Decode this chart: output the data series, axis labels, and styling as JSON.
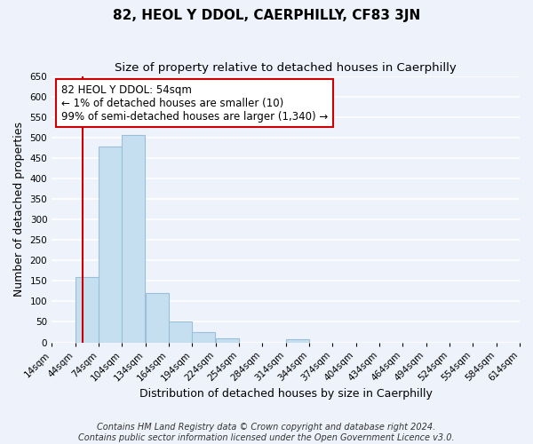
{
  "title": "82, HEOL Y DDOL, CAERPHILLY, CF83 3JN",
  "subtitle": "Size of property relative to detached houses in Caerphilly",
  "xlabel": "Distribution of detached houses by size in Caerphilly",
  "ylabel": "Number of detached properties",
  "bin_edges": [
    14,
    44,
    74,
    104,
    134,
    164,
    194,
    224,
    254,
    284,
    314,
    344,
    374,
    404,
    434,
    464,
    494,
    524,
    554,
    584,
    614
  ],
  "bin_counts": [
    0,
    160,
    478,
    505,
    120,
    50,
    25,
    10,
    0,
    0,
    8,
    0,
    0,
    0,
    0,
    0,
    0,
    0,
    0,
    0
  ],
  "bar_color": "#c6dff0",
  "bar_edge_color": "#9abfd8",
  "property_size": 54,
  "vline_color": "#cc0000",
  "ylim": [
    0,
    650
  ],
  "yticks": [
    0,
    50,
    100,
    150,
    200,
    250,
    300,
    350,
    400,
    450,
    500,
    550,
    600,
    650
  ],
  "annotation_line1": "82 HEOL Y DDOL: 54sqm",
  "annotation_line2": "← 1% of detached houses are smaller (10)",
  "annotation_line3": "99% of semi-detached houses are larger (1,340) →",
  "annotation_box_color": "#ffffff",
  "annotation_box_edge_color": "#cc0000",
  "footer_line1": "Contains HM Land Registry data © Crown copyright and database right 2024.",
  "footer_line2": "Contains public sector information licensed under the Open Government Licence v3.0.",
  "background_color": "#eef2fb",
  "grid_color": "#ffffff",
  "title_fontsize": 11,
  "subtitle_fontsize": 9.5,
  "axis_label_fontsize": 9,
  "tick_fontsize": 7.5,
  "annotation_fontsize": 8.5,
  "footer_fontsize": 7
}
